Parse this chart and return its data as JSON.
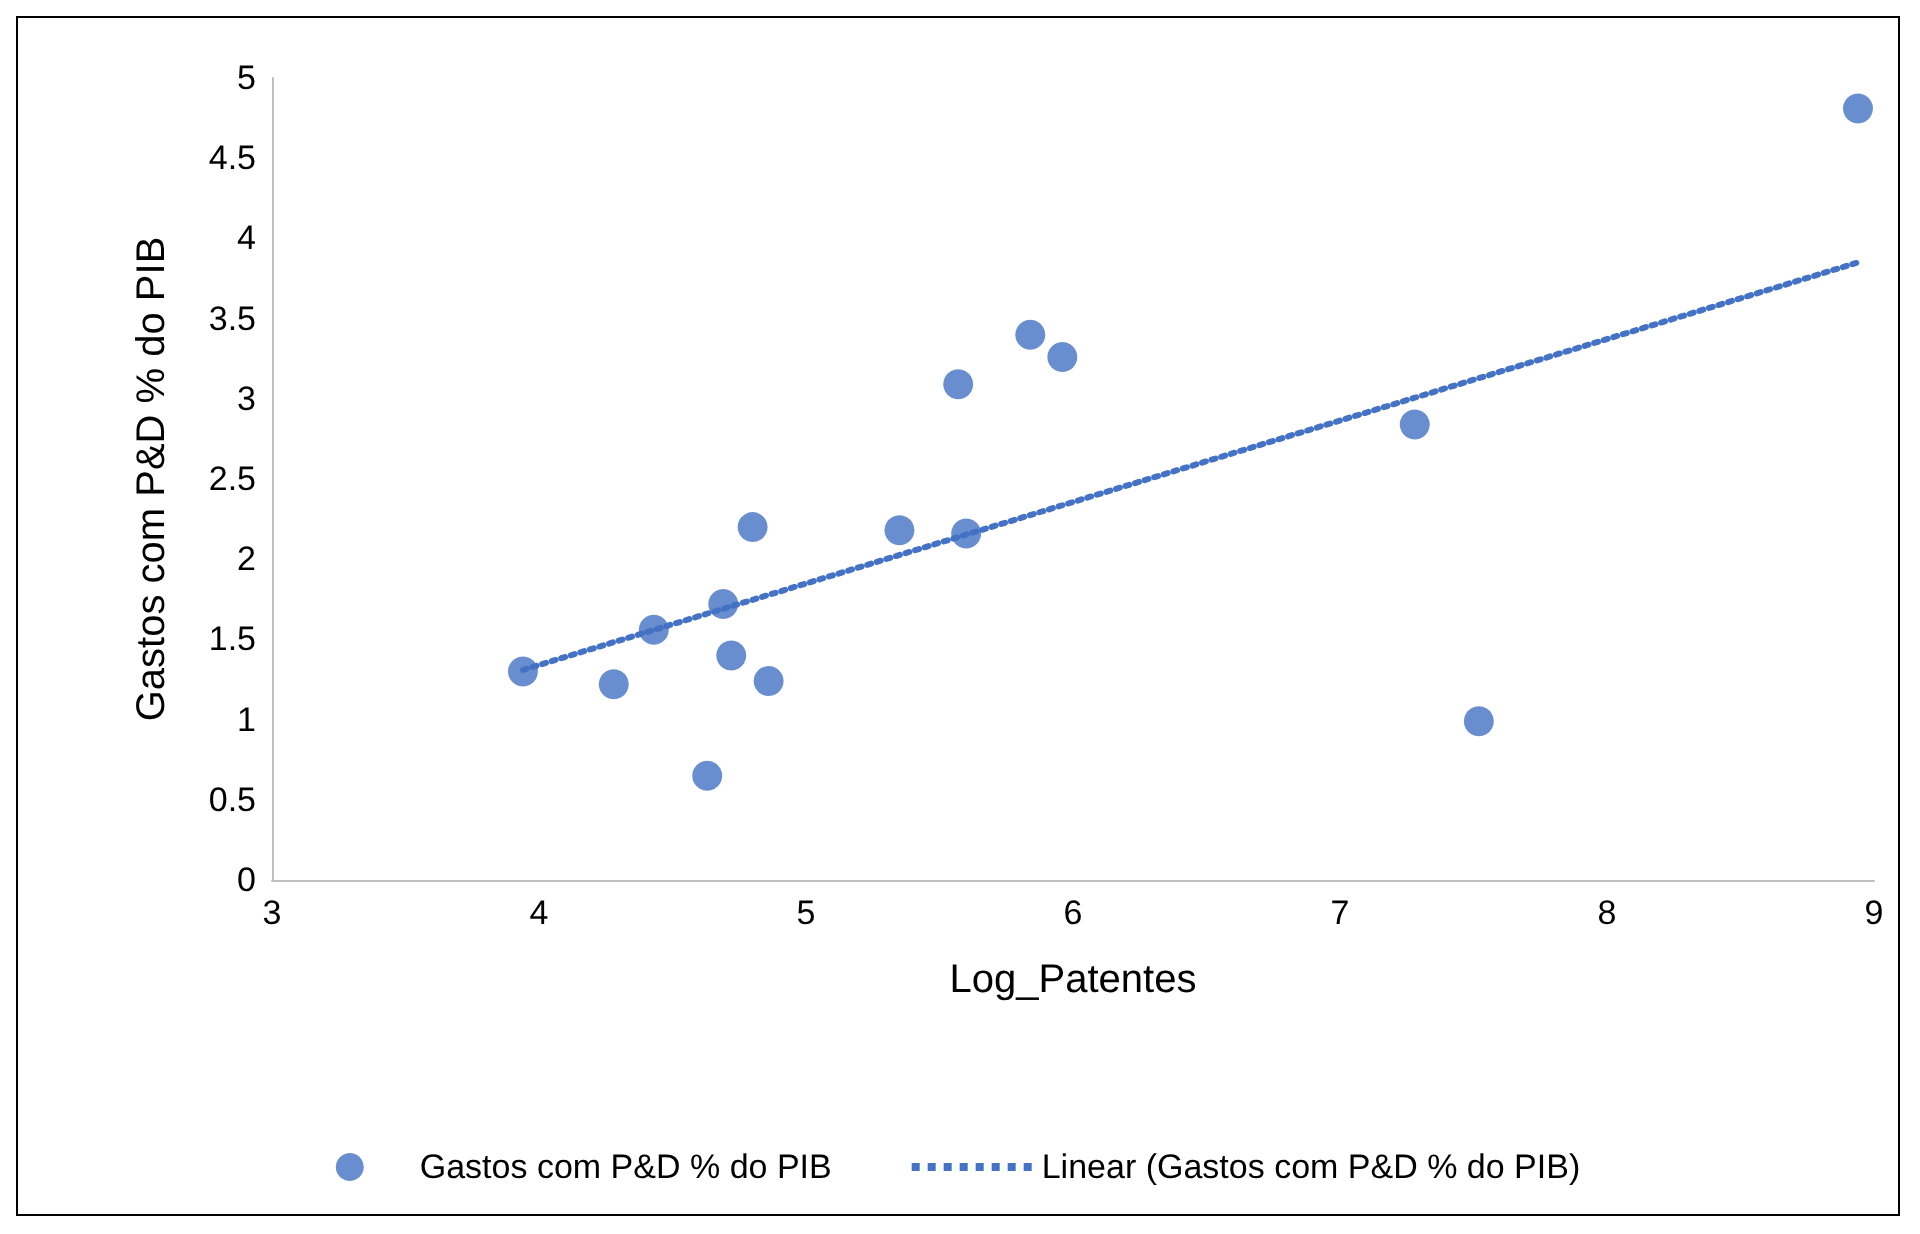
{
  "chart_data": {
    "type": "scatter",
    "xlabel": "Log_Patentes",
    "ylabel": "Gastos com P&D % do PIB",
    "xlim": [
      3,
      9
    ],
    "xticks": [
      3,
      4,
      5,
      6,
      7,
      8,
      9
    ],
    "ylim": [
      0,
      5
    ],
    "yticks": [
      0,
      0.5,
      1,
      1.5,
      2,
      2.5,
      3,
      3.5,
      4,
      4.5,
      5
    ],
    "grid": false,
    "legend": "bottom",
    "series": [
      {
        "name": "Gastos com P&D % do PIB",
        "color": "#4472c4",
        "marker": "circle",
        "x": [
          3.94,
          4.28,
          4.43,
          4.63,
          4.69,
          4.72,
          4.8,
          4.86,
          5.35,
          5.57,
          5.6,
          5.84,
          5.96,
          7.28,
          7.52,
          8.94
        ],
        "values": [
          1.3,
          1.22,
          1.56,
          0.65,
          1.72,
          1.4,
          2.2,
          1.24,
          2.18,
          3.09,
          2.16,
          3.4,
          3.26,
          2.84,
          0.99,
          4.81
        ]
      },
      {
        "name": "Linear (Gastos com P&D % do PIB)",
        "type": "line",
        "color": "#4472c4",
        "marker": "none",
        "line_style": "dotted",
        "x": [
          3.94,
          8.94
        ],
        "values": [
          1.31,
          3.85
        ]
      }
    ]
  }
}
